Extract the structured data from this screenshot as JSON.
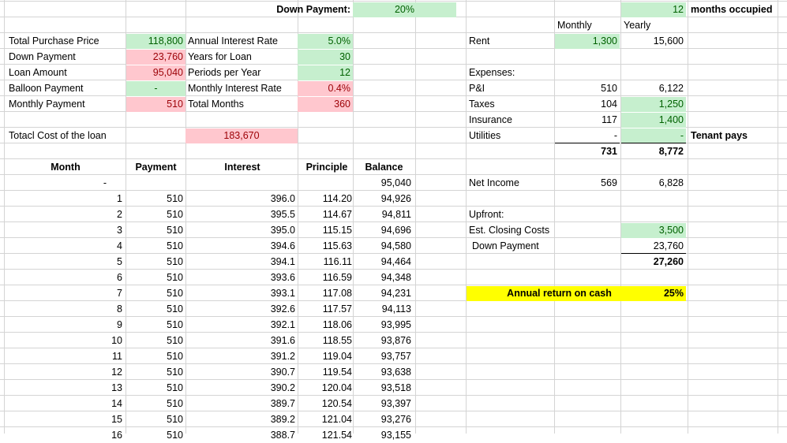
{
  "header": {
    "down_payment_label": "Down Payment:",
    "down_payment_value": "20%",
    "months_value": "12",
    "months_label": "months occupied",
    "monthly_label": "Monthly",
    "yearly_label": "Yearly"
  },
  "loan": {
    "total_price_label": "Total Purchase Price",
    "total_price": "118,800",
    "down_payment_label": "Down Payment",
    "down_payment": "23,760",
    "loan_amount_label": "Loan Amount",
    "loan_amount": "95,040",
    "balloon_label": "Balloon Payment",
    "balloon": "-",
    "monthly_payment_label": "Monthly Payment",
    "monthly_payment": "510",
    "annual_rate_label": "Annual Interest Rate",
    "annual_rate": "5.0%",
    "years_label": "Years for Loan",
    "years": "30",
    "periods_label": "Periods per Year",
    "periods": "12",
    "monthly_rate_label": "Monthly Interest Rate",
    "monthly_rate": "0.4%",
    "total_months_label": "Total Months",
    "total_months": "360",
    "total_cost_label": "Totacl Cost of the loan",
    "total_cost": "183,670"
  },
  "analysis": {
    "rent_label": "Rent",
    "rent_monthly": "1,300",
    "rent_yearly": "15,600",
    "expenses_label": "Expenses:",
    "pi_label": "P&I",
    "pi_monthly": "510",
    "pi_yearly": "6,122",
    "taxes_label": "Taxes",
    "taxes_monthly": "104",
    "taxes_yearly": "1,250",
    "insurance_label": "Insurance",
    "insurance_monthly": "117",
    "insurance_yearly": "1,400",
    "utilities_label": "Utilities",
    "utilities_monthly": "-",
    "utilities_yearly": "-",
    "tenant_pays": "Tenant pays",
    "expenses_total_monthly": "731",
    "expenses_total_yearly": "8,772",
    "net_income_label": "Net Income",
    "net_income_monthly": "569",
    "net_income_yearly": "6,828",
    "upfront_label": "Upfront:",
    "closing_costs_label": "Est. Closing Costs",
    "closing_costs": "3,500",
    "upfront_down_label": "Down Payment",
    "upfront_down": "23,760",
    "upfront_total": "27,260",
    "return_label": "Annual return on cash",
    "return_value": "25%"
  },
  "schedule": {
    "headers": [
      "Month",
      "Payment",
      "Interest",
      "Principle",
      "Balance"
    ],
    "start": {
      "month": "-",
      "balance": "95,040"
    },
    "rows": [
      {
        "month": "1",
        "payment": "510",
        "interest": "396.0",
        "principle": "114.20",
        "balance": "94,926"
      },
      {
        "month": "2",
        "payment": "510",
        "interest": "395.5",
        "principle": "114.67",
        "balance": "94,811"
      },
      {
        "month": "3",
        "payment": "510",
        "interest": "395.0",
        "principle": "115.15",
        "balance": "94,696"
      },
      {
        "month": "4",
        "payment": "510",
        "interest": "394.6",
        "principle": "115.63",
        "balance": "94,580"
      },
      {
        "month": "5",
        "payment": "510",
        "interest": "394.1",
        "principle": "116.11",
        "balance": "94,464"
      },
      {
        "month": "6",
        "payment": "510",
        "interest": "393.6",
        "principle": "116.59",
        "balance": "94,348"
      },
      {
        "month": "7",
        "payment": "510",
        "interest": "393.1",
        "principle": "117.08",
        "balance": "94,231"
      },
      {
        "month": "8",
        "payment": "510",
        "interest": "392.6",
        "principle": "117.57",
        "balance": "94,113"
      },
      {
        "month": "9",
        "payment": "510",
        "interest": "392.1",
        "principle": "118.06",
        "balance": "93,995"
      },
      {
        "month": "10",
        "payment": "510",
        "interest": "391.6",
        "principle": "118.55",
        "balance": "93,876"
      },
      {
        "month": "11",
        "payment": "510",
        "interest": "391.2",
        "principle": "119.04",
        "balance": "93,757"
      },
      {
        "month": "12",
        "payment": "510",
        "interest": "390.7",
        "principle": "119.54",
        "balance": "93,638"
      },
      {
        "month": "13",
        "payment": "510",
        "interest": "390.2",
        "principle": "120.04",
        "balance": "93,518"
      },
      {
        "month": "14",
        "payment": "510",
        "interest": "389.7",
        "principle": "120.54",
        "balance": "93,397"
      },
      {
        "month": "15",
        "payment": "510",
        "interest": "389.2",
        "principle": "121.04",
        "balance": "93,276"
      },
      {
        "month": "16",
        "payment": "510",
        "interest": "388.7",
        "principle": "121.54",
        "balance": "93,155"
      }
    ]
  }
}
